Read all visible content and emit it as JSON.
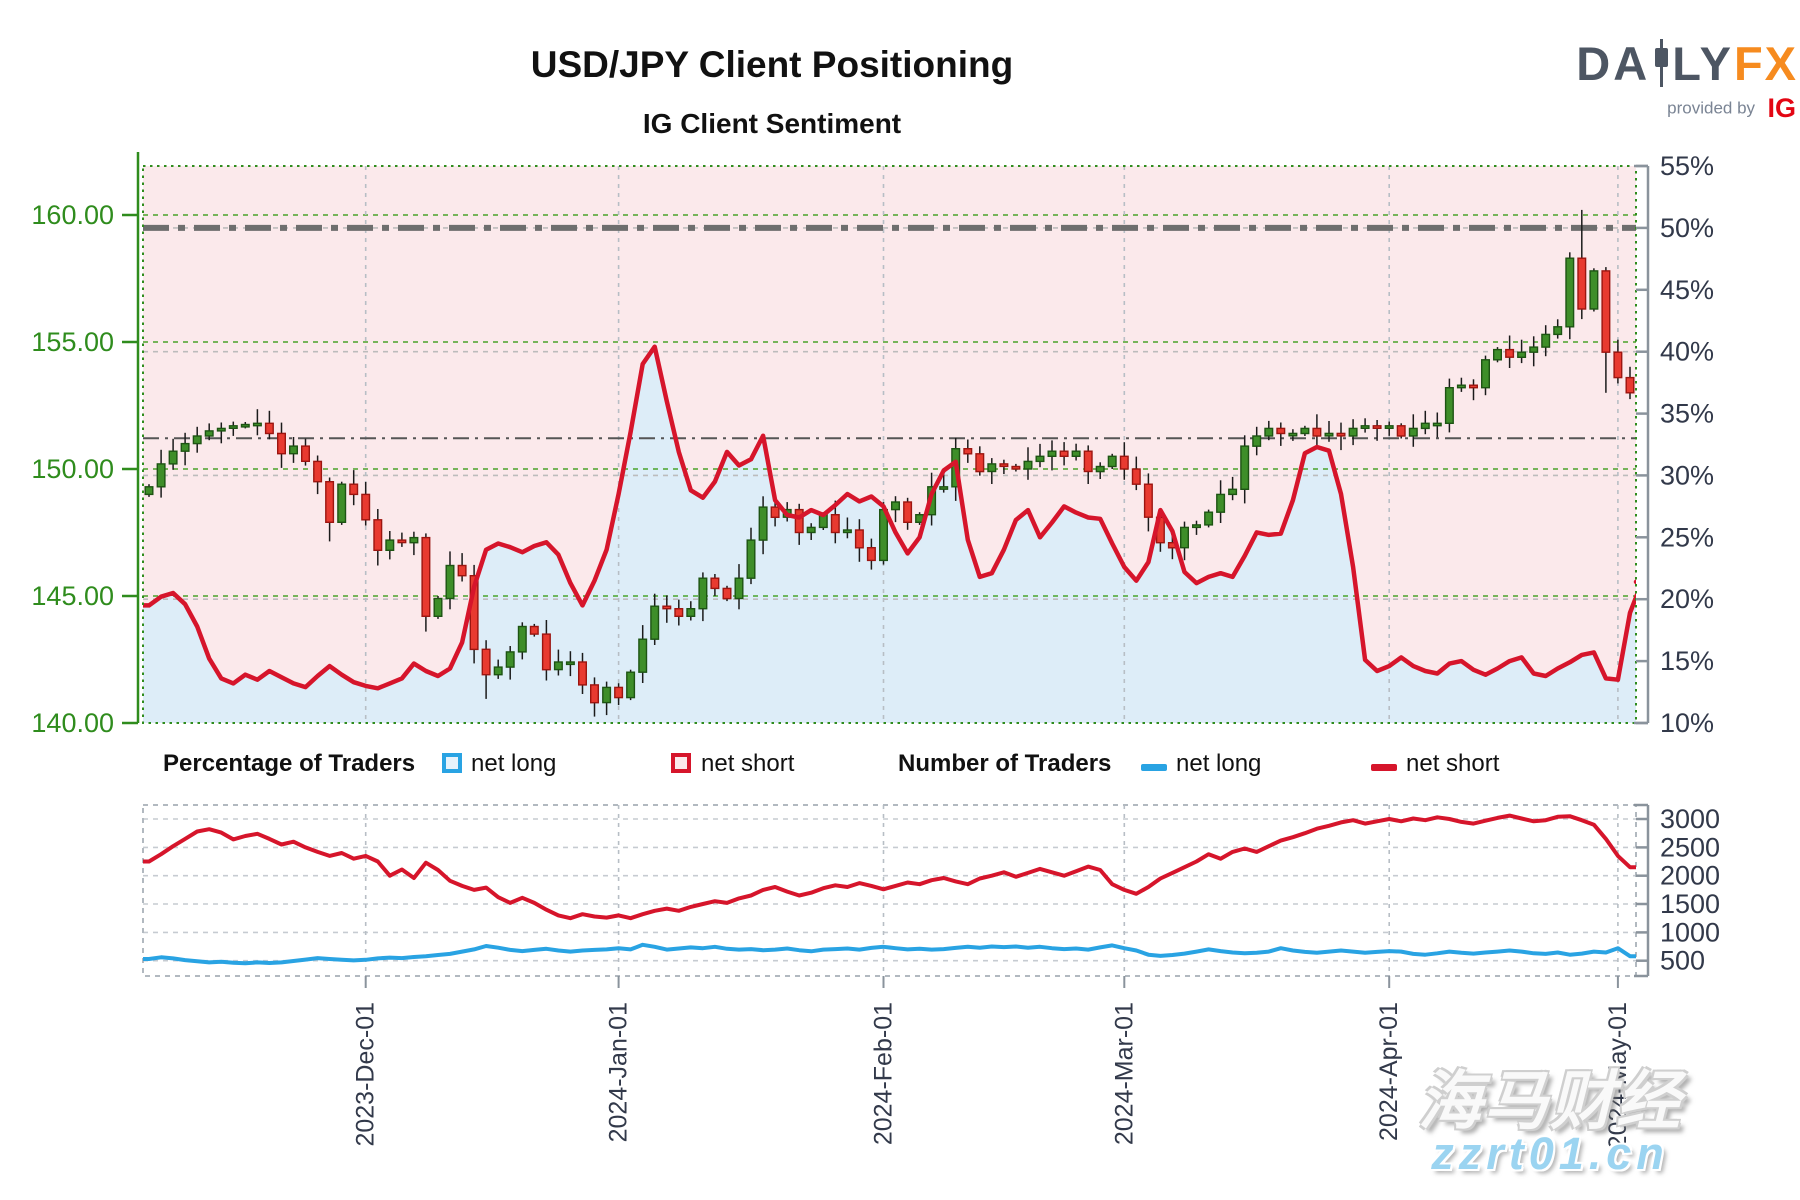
{
  "header": {
    "title": "USD/JPY Client Positioning",
    "subtitle": "IG Client Sentiment"
  },
  "logo": {
    "part1": "DA",
    "part2": "LY",
    "part3": "FX",
    "provided": "provided by",
    "ig": "IG"
  },
  "legend": {
    "pct_label": "Percentage of Traders",
    "num_label": "Number of Traders",
    "net_long": "net long",
    "net_short": "net short"
  },
  "watermark": {
    "line1": "海马财经",
    "line2": "zzrt01.cn"
  },
  "colors": {
    "net_long_blue": "#29a3e3",
    "net_short_red": "#d6152b",
    "long_fill": "#ddedf8",
    "short_fill": "#fbe9eb",
    "candle_up": "#3e8e29",
    "candle_up_border": "#1d5413",
    "candle_down": "#e83a30",
    "candle_down_border": "#9c1510",
    "axis_green": "#2f8c1d",
    "axis_gray": "#8a939c",
    "label_dark": "#32394a",
    "grid_green": "#4aa32a",
    "grid_gray": "#bcbcbc",
    "refline_gray": "#6e6e6e",
    "logo_orange": "#f68b1f",
    "logo_slate": "#4d5663",
    "ig_red": "#e30613"
  },
  "chart_data": [
    {
      "type": "candlestick+line",
      "title": "IG Client Sentiment",
      "x_axis": {
        "labels": [
          "2023-Dec-01",
          "2024-Jan-01",
          "2024-Feb-01",
          "2024-Mar-01",
          "2024-Apr-01",
          "2024-May-01"
        ],
        "boundary_indices": [
          18,
          39,
          61,
          81,
          103,
          122
        ]
      },
      "y_left": {
        "ticks": [
          "160.00",
          "155.00",
          "150.00",
          "145.00",
          "140.00"
        ],
        "tick_values": [
          160,
          155,
          150,
          145,
          140
        ],
        "range": [
          140,
          161.9
        ]
      },
      "y_right": {
        "ticks": [
          "55%",
          "50%",
          "45%",
          "40%",
          "35%",
          "30%",
          "25%",
          "20%",
          "15%",
          "10%"
        ],
        "tick_values": [
          55,
          50,
          45,
          40,
          35,
          30,
          25,
          20,
          15,
          10
        ],
        "range": [
          10,
          55
        ]
      },
      "grid": {
        "price_lines": [
          160,
          155,
          150,
          145
        ],
        "pct_lines": [
          50,
          40,
          30,
          20
        ]
      },
      "ref_lines": [
        {
          "pct": 50,
          "style": "thick-dashdot"
        },
        {
          "pct": 33,
          "style": "thin-dashdot"
        }
      ],
      "series": {
        "first_open": 149.0,
        "candles_close": [
          149.3,
          150.2,
          150.7,
          151.0,
          151.3,
          151.5,
          151.6,
          151.7,
          151.75,
          151.8,
          151.4,
          150.6,
          150.9,
          150.3,
          149.5,
          147.9,
          149.4,
          149.0,
          148.0,
          146.8,
          147.2,
          147.1,
          147.3,
          144.2,
          144.9,
          146.2,
          145.8,
          142.9,
          141.9,
          142.2,
          142.8,
          143.8,
          143.5,
          142.1,
          142.4,
          142.4,
          141.5,
          140.8,
          141.4,
          141.0,
          142.0,
          143.3,
          144.6,
          144.5,
          144.2,
          144.5,
          145.7,
          145.3,
          144.9,
          145.7,
          147.2,
          148.5,
          148.1,
          148.4,
          147.5,
          147.7,
          148.2,
          147.5,
          147.6,
          146.9,
          146.4,
          148.4,
          148.7,
          147.9,
          148.2,
          149.3,
          149.3,
          150.8,
          150.6,
          149.9,
          150.2,
          150.1,
          150.0,
          150.3,
          150.5,
          150.7,
          150.5,
          150.7,
          149.9,
          150.1,
          150.5,
          150.0,
          149.4,
          148.1,
          147.1,
          146.9,
          147.7,
          147.8,
          148.3,
          149.0,
          149.2,
          150.9,
          151.3,
          151.6,
          151.4,
          151.4,
          151.6,
          151.3,
          151.4,
          151.3,
          151.6,
          151.7,
          151.6,
          151.7,
          151.3,
          151.6,
          151.8,
          151.8,
          153.2,
          153.3,
          153.2,
          154.3,
          154.7,
          154.4,
          154.6,
          154.8,
          155.3,
          155.6,
          158.3,
          156.3,
          157.8,
          154.6,
          153.6,
          153.0
        ],
        "wick_overrides": {
          "15": {
            "l": 147.15
          },
          "19": {
            "l": 146.2
          },
          "23": {
            "l": 143.6
          },
          "28": {
            "l": 140.95
          },
          "37": {
            "l": 140.25
          },
          "85": {
            "l": 146.45
          },
          "119": {
            "h": 160.2,
            "l": 155.9
          },
          "121": {
            "h": 157.95,
            "l": 153.0
          },
          "123": {
            "l": 152.75
          }
        },
        "net_short_pct": [
          19.5,
          20.2,
          20.5,
          19.6,
          17.8,
          15.2,
          13.6,
          13.2,
          13.9,
          13.5,
          14.2,
          13.7,
          13.2,
          12.9,
          13.8,
          14.6,
          13.9,
          13.3,
          13.0,
          12.8,
          13.2,
          13.6,
          14.8,
          14.2,
          13.8,
          14.4,
          16.5,
          21.0,
          24.0,
          24.5,
          24.2,
          23.8,
          24.3,
          24.6,
          23.6,
          21.3,
          19.5,
          21.5,
          24.0,
          28.5,
          33.5,
          39.0,
          40.4,
          36.0,
          31.9,
          28.8,
          28.2,
          29.5,
          31.9,
          30.8,
          31.3,
          33.2,
          28.0,
          26.8,
          26.6,
          27.2,
          26.8,
          27.6,
          28.5,
          27.9,
          28.3,
          27.5,
          25.4,
          23.7,
          25.0,
          28.5,
          30.4,
          31.1,
          24.8,
          21.8,
          22.1,
          24.0,
          26.4,
          27.2,
          25.0,
          26.2,
          27.5,
          27.0,
          26.6,
          26.5,
          24.5,
          22.6,
          21.5,
          23.0,
          27.2,
          25.5,
          22.2,
          21.3,
          21.8,
          22.1,
          21.8,
          23.5,
          25.4,
          25.2,
          25.3,
          28.0,
          31.8,
          32.3,
          32.0,
          28.5,
          22.6,
          15.1,
          14.2,
          14.6,
          15.3,
          14.6,
          14.2,
          14.0,
          14.8,
          15.0,
          14.3,
          13.9,
          14.4,
          15.0,
          15.3,
          14.0,
          13.8,
          14.4,
          14.9,
          15.5,
          15.7,
          13.6,
          13.5,
          18.9,
          21.4
        ]
      }
    },
    {
      "type": "line",
      "title": "Number of Traders",
      "y_right": {
        "ticks": [
          "3000",
          "2500",
          "2000",
          "1500",
          "1000",
          "500"
        ],
        "tick_values": [
          3000,
          2500,
          2000,
          1500,
          1000,
          500
        ],
        "range": [
          220,
          3270
        ]
      },
      "series": {
        "net_short": [
          2250,
          2380,
          2520,
          2650,
          2780,
          2820,
          2760,
          2640,
          2700,
          2740,
          2650,
          2550,
          2600,
          2500,
          2420,
          2350,
          2400,
          2300,
          2350,
          2250,
          2000,
          2110,
          1960,
          2230,
          2100,
          1910,
          1820,
          1750,
          1790,
          1620,
          1520,
          1610,
          1520,
          1400,
          1300,
          1250,
          1320,
          1280,
          1260,
          1300,
          1250,
          1320,
          1380,
          1420,
          1380,
          1450,
          1500,
          1550,
          1520,
          1600,
          1650,
          1750,
          1800,
          1720,
          1650,
          1700,
          1780,
          1830,
          1800,
          1870,
          1820,
          1760,
          1820,
          1880,
          1850,
          1920,
          1960,
          1900,
          1850,
          1950,
          2000,
          2060,
          1980,
          2050,
          2120,
          2060,
          2000,
          2080,
          2160,
          2100,
          1850,
          1750,
          1680,
          1800,
          1950,
          2050,
          2150,
          2250,
          2380,
          2300,
          2420,
          2480,
          2420,
          2520,
          2620,
          2680,
          2750,
          2830,
          2880,
          2940,
          2980,
          2920,
          2960,
          3000,
          2960,
          3010,
          2980,
          3030,
          3000,
          2950,
          2920,
          2970,
          3020,
          3060,
          3010,
          2960,
          2980,
          3040,
          3050,
          2980,
          2900,
          2650,
          2350,
          2150
        ],
        "net_long": [
          530,
          560,
          540,
          510,
          490,
          470,
          480,
          465,
          455,
          470,
          460,
          470,
          495,
          520,
          545,
          530,
          515,
          505,
          515,
          540,
          555,
          545,
          565,
          580,
          600,
          620,
          660,
          700,
          760,
          730,
          690,
          670,
          690,
          710,
          680,
          660,
          680,
          690,
          700,
          720,
          700,
          780,
          745,
          695,
          715,
          735,
          720,
          745,
          710,
          695,
          705,
          685,
          695,
          715,
          685,
          665,
          695,
          705,
          715,
          695,
          725,
          745,
          720,
          700,
          710,
          695,
          705,
          725,
          745,
          730,
          750,
          740,
          750,
          730,
          745,
          720,
          705,
          715,
          695,
          735,
          770,
          720,
          680,
          605,
          585,
          600,
          625,
          660,
          700,
          670,
          645,
          630,
          640,
          660,
          720,
          680,
          655,
          640,
          660,
          680,
          660,
          640,
          655,
          670,
          660,
          620,
          605,
          630,
          660,
          640,
          625,
          645,
          660,
          680,
          660,
          630,
          620,
          645,
          605,
          625,
          660,
          645,
          720,
          580
        ]
      }
    }
  ]
}
